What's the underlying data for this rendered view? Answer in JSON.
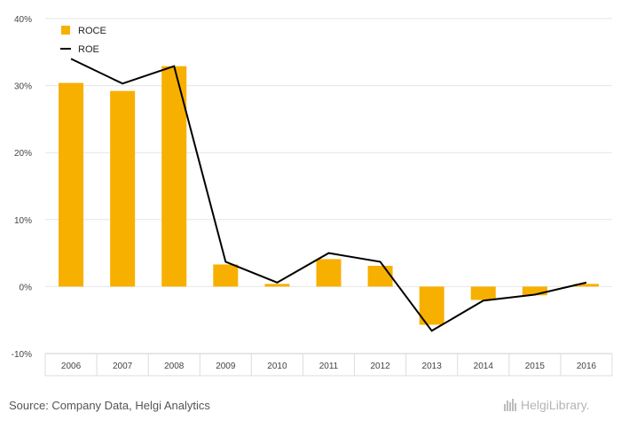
{
  "chart_data": {
    "type": "bar",
    "categories": [
      "2006",
      "2007",
      "2008",
      "2009",
      "2010",
      "2011",
      "2012",
      "2013",
      "2014",
      "2015",
      "2016"
    ],
    "series": [
      {
        "name": "ROCE",
        "type": "bar",
        "color": "#f7b000",
        "values": [
          30.4,
          29.2,
          32.9,
          3.3,
          0.4,
          4.1,
          3.1,
          -5.7,
          -2.0,
          -1.3,
          0.4
        ]
      },
      {
        "name": "ROE",
        "type": "line",
        "color": "#000000",
        "values": [
          34.0,
          30.3,
          32.9,
          3.7,
          0.6,
          5.0,
          3.7,
          -6.6,
          -2.1,
          -1.2,
          0.6
        ]
      }
    ],
    "y_ticks": [
      "-10%",
      "0%",
      "10%",
      "20%",
      "30%",
      "40%"
    ],
    "ylim": [
      -10,
      40
    ],
    "grid": true,
    "legend": "top-left"
  },
  "footer": {
    "source": "Source: Company Data, Helgi Analytics",
    "logo": "HelgiLibrary."
  }
}
